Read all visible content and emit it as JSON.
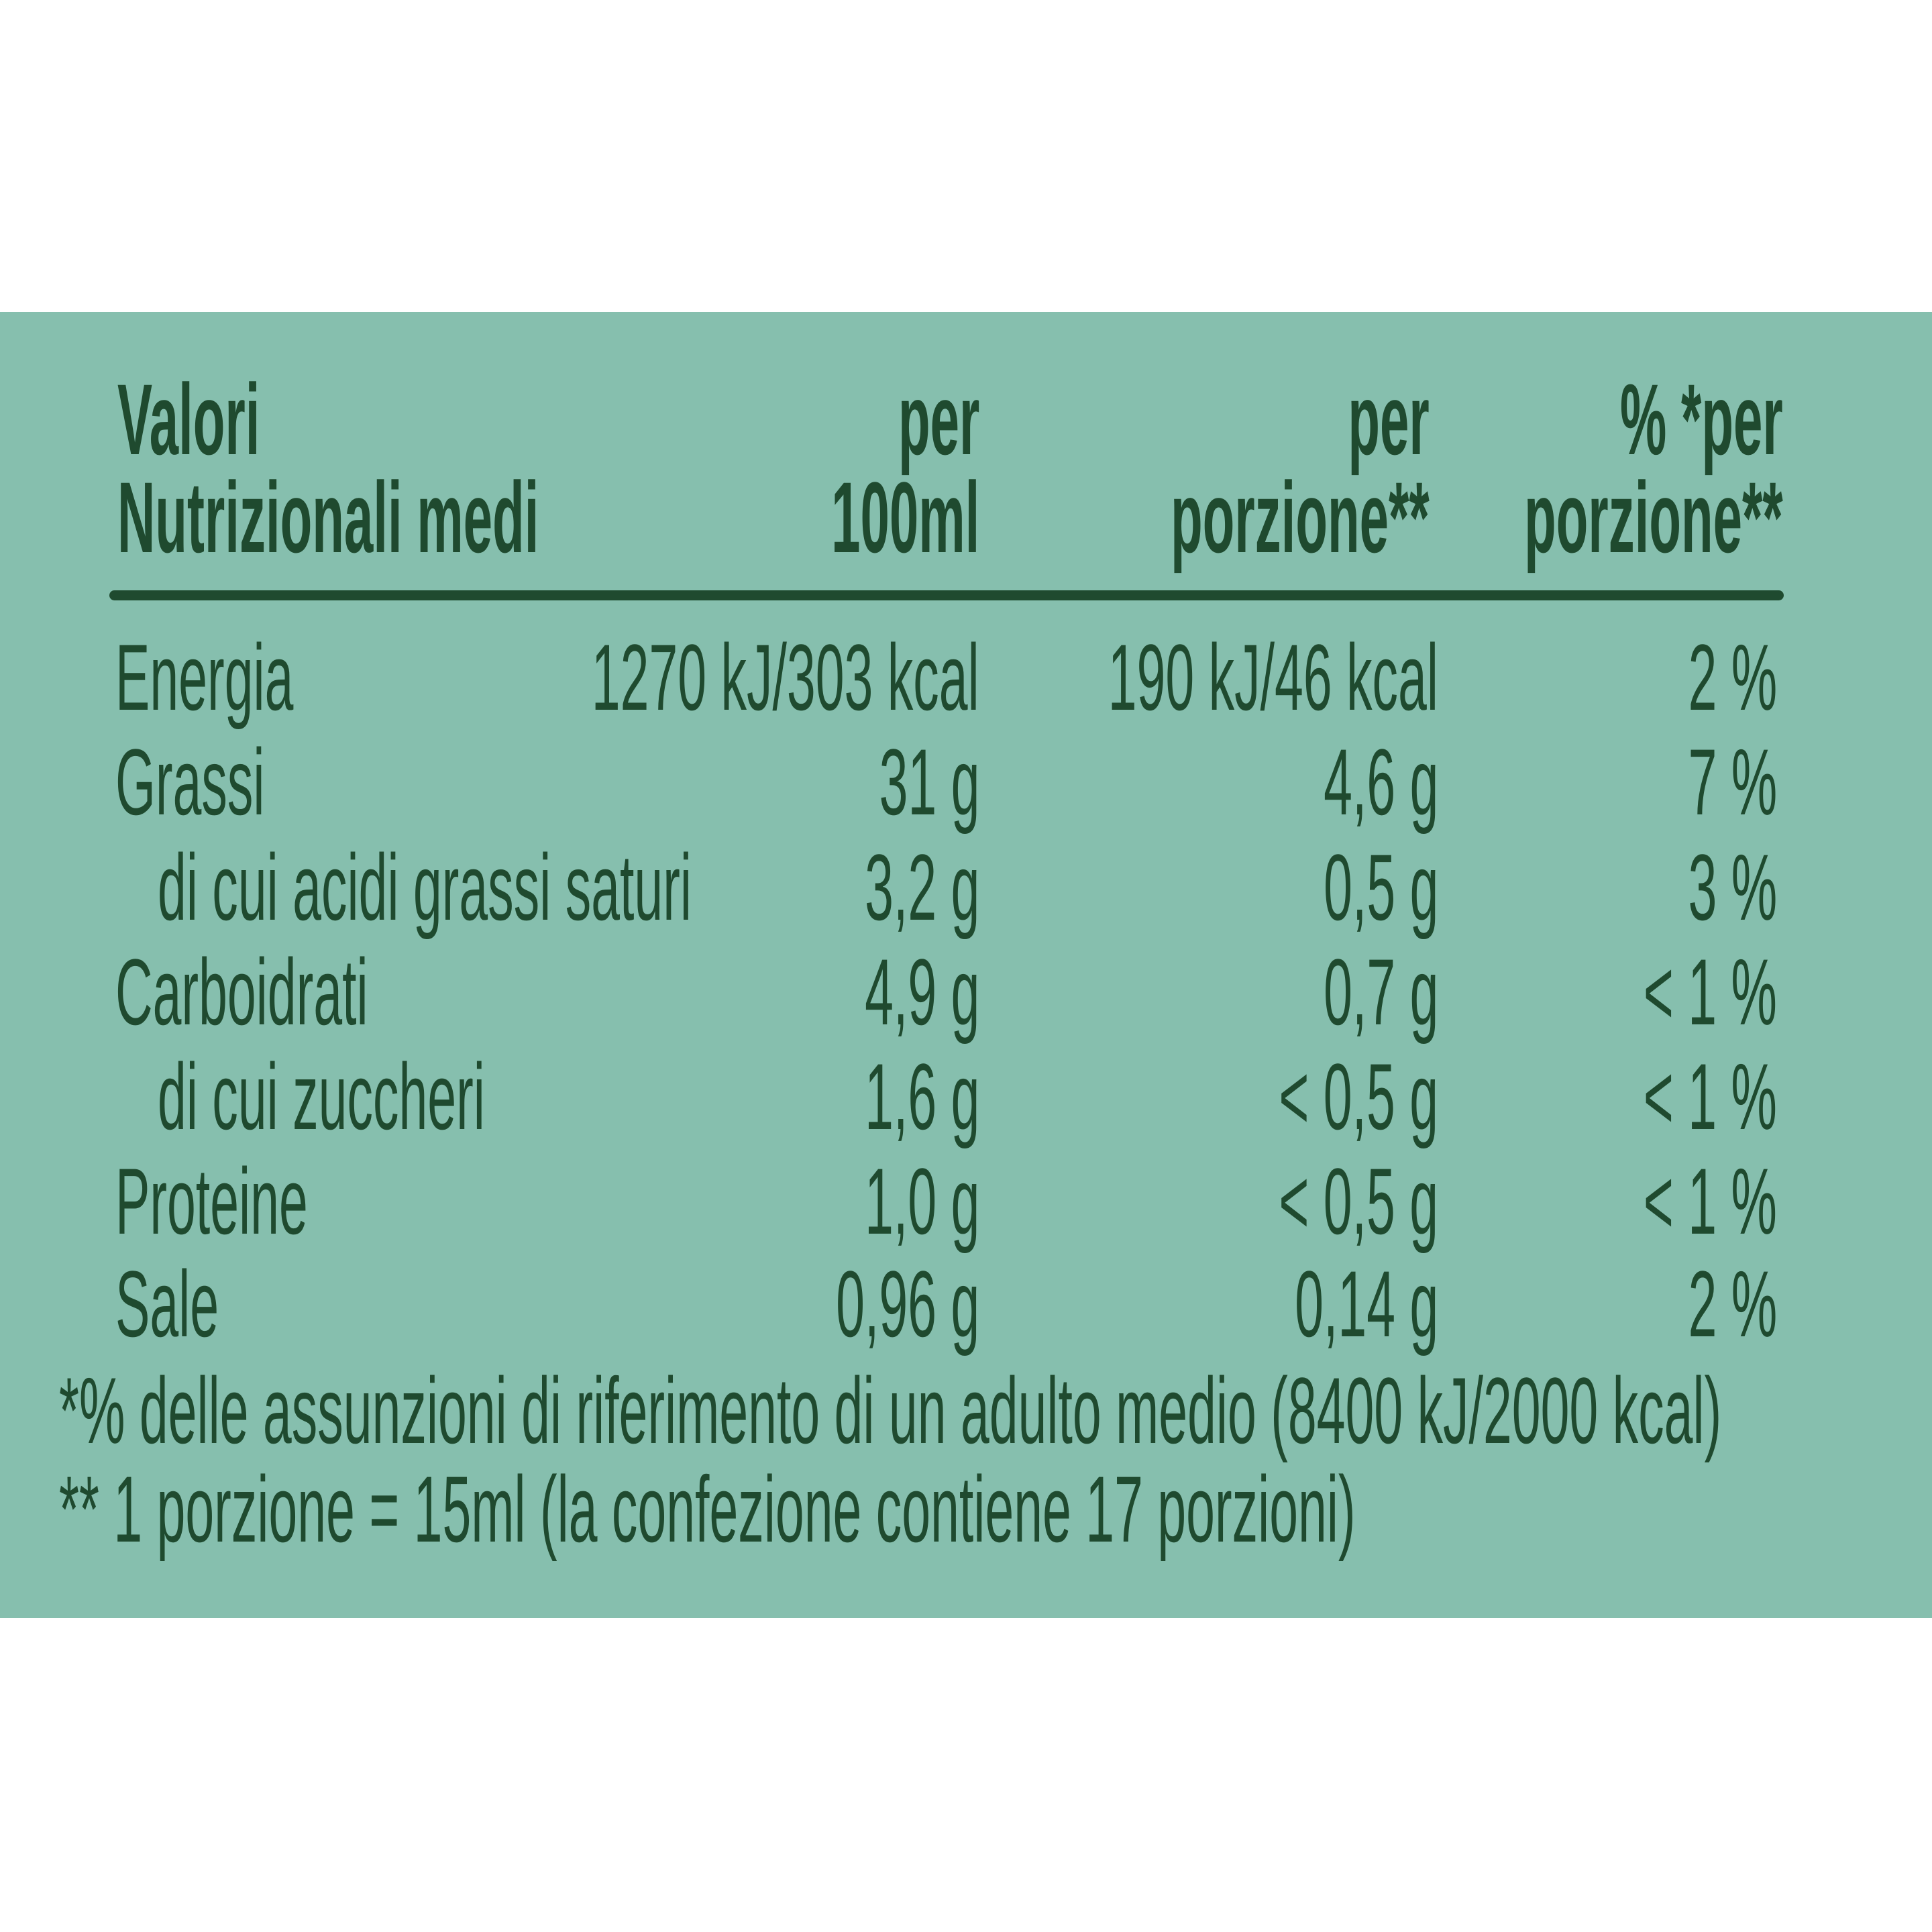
{
  "table": {
    "header": [
      "Valori\nNutrizionali medi",
      "per\n100ml",
      "per\nporzione**",
      "% *per\nporzione**"
    ],
    "rows": [
      [
        "Energia",
        "1270 kJ/303 kcal",
        "190 kJ/46 kcal",
        "2 %"
      ],
      [
        "Grassi",
        "31 g",
        "4,6 g",
        "7 %"
      ],
      [
        "di cui acidi grassi saturi",
        "3,2 g",
        "0,5 g",
        "3 %"
      ],
      [
        "Carboidrati",
        "4,9 g",
        "0,7 g",
        "< 1 %"
      ],
      [
        "di cui zuccheri",
        "1,6 g",
        "< 0,5 g",
        "< 1 %"
      ],
      [
        "Proteine",
        "1,0 g",
        "< 0,5 g",
        "< 1 %"
      ],
      [
        "Sale",
        "0,96 g",
        "0,14 g",
        "2 %"
      ]
    ]
  },
  "footnotes": [
    "*% delle assunzioni di riferimento di un adulto medio (8400 kJ/2000 kcal)",
    "** 1 porzione = 15ml (la confezione contiene 17 porzioni)"
  ]
}
